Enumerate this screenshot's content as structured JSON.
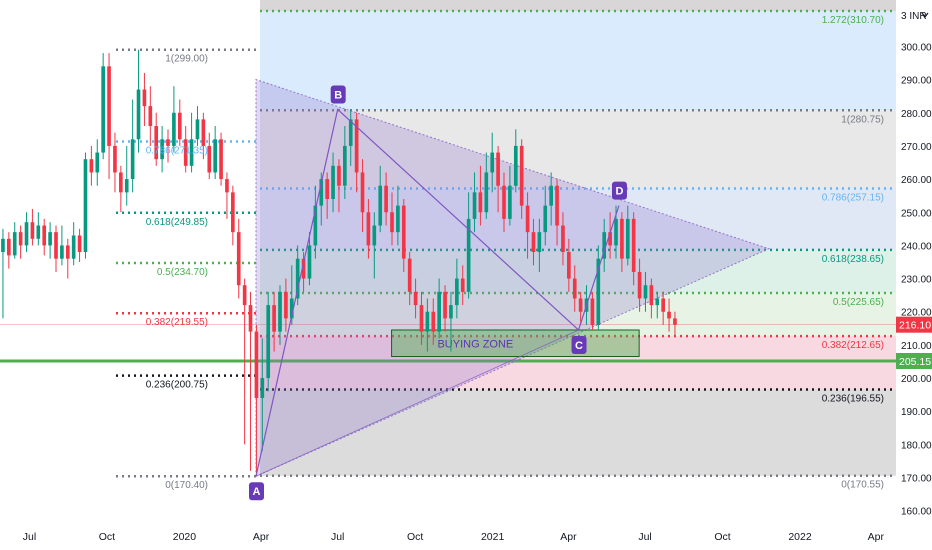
{
  "chart_data": {
    "type": "candlestick",
    "currency_label": "3 INR",
    "currency_icon": "chevron-down-icon",
    "y_ticks": [
      160,
      170,
      180,
      190,
      200,
      210,
      220,
      230,
      240,
      250,
      260,
      270,
      280,
      290,
      300
    ],
    "y_tick_labels": [
      "160.00",
      "170.00",
      "180.00",
      "190.00",
      "200.00",
      "210.00",
      "220.00",
      "230.00",
      "240.00",
      "250.00",
      "260.00",
      "270.00",
      "280.00",
      "290.00",
      "300.00"
    ],
    "ylim": [
      156,
      314
    ],
    "x_range": [
      "2019-05-27",
      "2022-04-25"
    ],
    "x_ticks": [
      {
        "date": "2019-07-01",
        "label": "Jul"
      },
      {
        "date": "2019-10-01",
        "label": "Oct"
      },
      {
        "date": "2020-01-01",
        "label": "2020"
      },
      {
        "date": "2020-04-01",
        "label": "Apr"
      },
      {
        "date": "2020-07-01",
        "label": "Jul"
      },
      {
        "date": "2020-10-01",
        "label": "Oct"
      },
      {
        "date": "2021-01-01",
        "label": "2021"
      },
      {
        "date": "2021-04-01",
        "label": "Apr"
      },
      {
        "date": "2021-07-01",
        "label": "Jul"
      },
      {
        "date": "2021-10-01",
        "label": "Oct"
      },
      {
        "date": "2022-01-01",
        "label": "2022"
      },
      {
        "date": "2022-04-01",
        "label": "Apr"
      }
    ],
    "price_badges": [
      {
        "value": 216.1,
        "label": "216.10",
        "color": "#f23645"
      },
      {
        "value": 205.15,
        "label": "205.15",
        "color": "#4caf50"
      }
    ],
    "green_line_value": 205.15,
    "pink_line_value": 216.1,
    "fib_left": {
      "levels": [
        {
          "ratio_label": "1(299.00)",
          "value": 299.0,
          "color": "#787b86"
        },
        {
          "ratio_label": "0.786(271.35)",
          "value": 271.35,
          "color": "#64b5f6"
        },
        {
          "ratio_label": "0.618(249.85)",
          "value": 249.85,
          "color": "#089981"
        },
        {
          "ratio_label": "0.5(234.70)",
          "value": 234.7,
          "color": "#4caf50"
        },
        {
          "ratio_label": "0.382(219.55)",
          "value": 219.55,
          "color": "#f23645"
        },
        {
          "ratio_label": "0.236(200.75)",
          "value": 200.75,
          "color": "#131722"
        },
        {
          "ratio_label": "0(170.40)",
          "value": 170.4,
          "color": "#787b86"
        }
      ]
    },
    "fib_right": {
      "levels": [
        {
          "ratio_label": "1.272(310.70)",
          "value": 310.7,
          "color": "#4caf50"
        },
        {
          "ratio_label": "1(280.75)",
          "value": 280.75,
          "color": "#787b86"
        },
        {
          "ratio_label": "0.786(257.15)",
          "value": 257.15,
          "color": "#64b5f6"
        },
        {
          "ratio_label": "0.618(238.65)",
          "value": 238.65,
          "color": "#089981"
        },
        {
          "ratio_label": "0.5(225.65)",
          "value": 225.65,
          "color": "#4caf50"
        },
        {
          "ratio_label": "0.382(212.65)",
          "value": 212.65,
          "color": "#f23645"
        },
        {
          "ratio_label": "0.236(196.55)",
          "value": 196.55,
          "color": "#131722"
        },
        {
          "ratio_label": "0(170.55)",
          "value": 170.55,
          "color": "#787b86"
        }
      ]
    },
    "points": [
      {
        "label": "A",
        "date": "2020-03-26",
        "value": 170.4
      },
      {
        "label": "B",
        "date": "2020-07-01",
        "value": 281.0
      },
      {
        "label": "C",
        "date": "2021-04-13",
        "value": 214.5
      },
      {
        "label": "D",
        "date": "2021-05-31",
        "value": 252.0
      }
    ],
    "triangle_apex": {
      "date": "2021-11-25",
      "value": 239.0
    },
    "triangle_top_start": {
      "date": "2020-03-26",
      "value": 290.0
    },
    "buying_zone": {
      "label": "BUYING ZONE",
      "date_start": "2020-09-03",
      "date_end": "2021-06-24",
      "value_top": 214.5,
      "value_bottom": 206.5
    },
    "candles": [
      {
        "o": 238,
        "c": 242,
        "h": 245,
        "l": 218
      },
      {
        "o": 242,
        "c": 237,
        "h": 244,
        "l": 233
      },
      {
        "o": 237,
        "c": 244,
        "h": 247,
        "l": 236
      },
      {
        "o": 244,
        "c": 240,
        "h": 246,
        "l": 236
      },
      {
        "o": 240,
        "c": 247,
        "h": 250,
        "l": 238
      },
      {
        "o": 247,
        "c": 242,
        "h": 251,
        "l": 240
      },
      {
        "o": 242,
        "c": 246,
        "h": 250,
        "l": 240
      },
      {
        "o": 246,
        "c": 240,
        "h": 248,
        "l": 237
      },
      {
        "o": 240,
        "c": 244,
        "h": 247,
        "l": 236
      },
      {
        "o": 244,
        "c": 236,
        "h": 246,
        "l": 232
      },
      {
        "o": 236,
        "c": 240,
        "h": 246,
        "l": 234
      },
      {
        "o": 240,
        "c": 236,
        "h": 242,
        "l": 230
      },
      {
        "o": 236,
        "c": 243,
        "h": 247,
        "l": 234
      },
      {
        "o": 243,
        "c": 238,
        "h": 245,
        "l": 235
      },
      {
        "o": 238,
        "c": 266,
        "h": 268,
        "l": 236
      },
      {
        "o": 266,
        "c": 262,
        "h": 270,
        "l": 258
      },
      {
        "o": 262,
        "c": 268,
        "h": 272,
        "l": 258
      },
      {
        "o": 268,
        "c": 294,
        "h": 298,
        "l": 266
      },
      {
        "o": 294,
        "c": 270,
        "h": 298,
        "l": 260
      },
      {
        "o": 270,
        "c": 262,
        "h": 274,
        "l": 256
      },
      {
        "o": 262,
        "c": 256,
        "h": 264,
        "l": 250
      },
      {
        "o": 256,
        "c": 260,
        "h": 270,
        "l": 252
      },
      {
        "o": 260,
        "c": 272,
        "h": 284,
        "l": 256
      },
      {
        "o": 272,
        "c": 287,
        "h": 299,
        "l": 268
      },
      {
        "o": 287,
        "c": 282,
        "h": 292,
        "l": 276
      },
      {
        "o": 282,
        "c": 276,
        "h": 288,
        "l": 270
      },
      {
        "o": 276,
        "c": 266,
        "h": 280,
        "l": 264
      },
      {
        "o": 266,
        "c": 272,
        "h": 276,
        "l": 262
      },
      {
        "o": 272,
        "c": 270,
        "h": 275,
        "l": 265
      },
      {
        "o": 270,
        "c": 280,
        "h": 288,
        "l": 268
      },
      {
        "o": 280,
        "c": 272,
        "h": 284,
        "l": 270
      },
      {
        "o": 272,
        "c": 264,
        "h": 276,
        "l": 262
      },
      {
        "o": 264,
        "c": 272,
        "h": 280,
        "l": 262
      },
      {
        "o": 272,
        "c": 278,
        "h": 282,
        "l": 270
      },
      {
        "o": 278,
        "c": 270,
        "h": 280,
        "l": 266
      },
      {
        "o": 270,
        "c": 262,
        "h": 274,
        "l": 260
      },
      {
        "o": 262,
        "c": 272,
        "h": 276,
        "l": 260
      },
      {
        "o": 272,
        "c": 260,
        "h": 274,
        "l": 258
      },
      {
        "o": 260,
        "c": 256,
        "h": 262,
        "l": 248
      },
      {
        "o": 256,
        "c": 244,
        "h": 258,
        "l": 240
      },
      {
        "o": 244,
        "c": 228,
        "h": 248,
        "l": 224
      },
      {
        "o": 228,
        "c": 222,
        "h": 230,
        "l": 180
      },
      {
        "o": 222,
        "c": 214,
        "h": 226,
        "l": 172
      },
      {
        "o": 214,
        "c": 194,
        "h": 216,
        "l": 170.4
      },
      {
        "o": 194,
        "c": 200,
        "h": 212,
        "l": 178
      },
      {
        "o": 200,
        "c": 222,
        "h": 226,
        "l": 196
      },
      {
        "o": 222,
        "c": 214,
        "h": 226,
        "l": 208
      },
      {
        "o": 214,
        "c": 226,
        "h": 228,
        "l": 210
      },
      {
        "o": 226,
        "c": 218,
        "h": 230,
        "l": 214
      },
      {
        "o": 218,
        "c": 224,
        "h": 234,
        "l": 216
      },
      {
        "o": 224,
        "c": 236,
        "h": 240,
        "l": 222
      },
      {
        "o": 236,
        "c": 230,
        "h": 238,
        "l": 226
      },
      {
        "o": 230,
        "c": 240,
        "h": 244,
        "l": 228
      },
      {
        "o": 240,
        "c": 252,
        "h": 258,
        "l": 236
      },
      {
        "o": 252,
        "c": 260,
        "h": 262,
        "l": 246
      },
      {
        "o": 260,
        "c": 254,
        "h": 262,
        "l": 248
      },
      {
        "o": 254,
        "c": 264,
        "h": 268,
        "l": 250
      },
      {
        "o": 264,
        "c": 258,
        "h": 266,
        "l": 250
      },
      {
        "o": 258,
        "c": 270,
        "h": 276,
        "l": 254
      },
      {
        "o": 270,
        "c": 278,
        "h": 281,
        "l": 264
      },
      {
        "o": 278,
        "c": 262,
        "h": 280,
        "l": 256
      },
      {
        "o": 262,
        "c": 250,
        "h": 266,
        "l": 244
      },
      {
        "o": 250,
        "c": 240,
        "h": 254,
        "l": 236
      },
      {
        "o": 240,
        "c": 246,
        "h": 250,
        "l": 230
      },
      {
        "o": 246,
        "c": 258,
        "h": 264,
        "l": 244
      },
      {
        "o": 258,
        "c": 250,
        "h": 262,
        "l": 246
      },
      {
        "o": 250,
        "c": 244,
        "h": 256,
        "l": 240
      },
      {
        "o": 244,
        "c": 252,
        "h": 258,
        "l": 240
      },
      {
        "o": 252,
        "c": 236,
        "h": 254,
        "l": 232
      },
      {
        "o": 236,
        "c": 226,
        "h": 238,
        "l": 222
      },
      {
        "o": 226,
        "c": 222,
        "h": 230,
        "l": 218
      },
      {
        "o": 222,
        "c": 214,
        "h": 226,
        "l": 210
      },
      {
        "o": 214,
        "c": 220,
        "h": 224,
        "l": 208
      },
      {
        "o": 220,
        "c": 214,
        "h": 224,
        "l": 210
      },
      {
        "o": 214,
        "c": 226,
        "h": 230,
        "l": 212
      },
      {
        "o": 226,
        "c": 218,
        "h": 228,
        "l": 214
      },
      {
        "o": 218,
        "c": 222,
        "h": 226,
        "l": 208
      },
      {
        "o": 222,
        "c": 230,
        "h": 236,
        "l": 218
      },
      {
        "o": 230,
        "c": 226,
        "h": 234,
        "l": 222
      },
      {
        "o": 226,
        "c": 248,
        "h": 256,
        "l": 224
      },
      {
        "o": 248,
        "c": 256,
        "h": 262,
        "l": 244
      },
      {
        "o": 256,
        "c": 250,
        "h": 264,
        "l": 246
      },
      {
        "o": 250,
        "c": 262,
        "h": 268,
        "l": 248
      },
      {
        "o": 262,
        "c": 268,
        "h": 274,
        "l": 256
      },
      {
        "o": 268,
        "c": 258,
        "h": 270,
        "l": 250
      },
      {
        "o": 258,
        "c": 248,
        "h": 262,
        "l": 244
      },
      {
        "o": 248,
        "c": 258,
        "h": 264,
        "l": 246
      },
      {
        "o": 258,
        "c": 270,
        "h": 275,
        "l": 256
      },
      {
        "o": 270,
        "c": 252,
        "h": 272,
        "l": 248
      },
      {
        "o": 252,
        "c": 244,
        "h": 256,
        "l": 236
      },
      {
        "o": 244,
        "c": 238,
        "h": 248,
        "l": 234
      },
      {
        "o": 238,
        "c": 244,
        "h": 248,
        "l": 232
      },
      {
        "o": 244,
        "c": 252,
        "h": 258,
        "l": 240
      },
      {
        "o": 252,
        "c": 258,
        "h": 262,
        "l": 246
      },
      {
        "o": 258,
        "c": 246,
        "h": 260,
        "l": 240
      },
      {
        "o": 246,
        "c": 238,
        "h": 250,
        "l": 234
      },
      {
        "o": 238,
        "c": 230,
        "h": 242,
        "l": 226
      },
      {
        "o": 230,
        "c": 224,
        "h": 234,
        "l": 220
      },
      {
        "o": 224,
        "c": 220,
        "h": 226,
        "l": 216
      },
      {
        "o": 220,
        "c": 224,
        "h": 228,
        "l": 216
      },
      {
        "o": 224,
        "c": 216,
        "h": 226,
        "l": 214.5
      },
      {
        "o": 216,
        "c": 236,
        "h": 240,
        "l": 214.5
      },
      {
        "o": 236,
        "c": 244,
        "h": 248,
        "l": 232
      },
      {
        "o": 244,
        "c": 240,
        "h": 250,
        "l": 236
      },
      {
        "o": 240,
        "c": 248,
        "h": 252,
        "l": 236
      },
      {
        "o": 248,
        "c": 236,
        "h": 250,
        "l": 232
      },
      {
        "o": 236,
        "c": 248,
        "h": 252,
        "l": 234
      },
      {
        "o": 248,
        "c": 232,
        "h": 250,
        "l": 228
      },
      {
        "o": 232,
        "c": 224,
        "h": 236,
        "l": 220
      },
      {
        "o": 224,
        "c": 228,
        "h": 232,
        "l": 220
      },
      {
        "o": 228,
        "c": 222,
        "h": 230,
        "l": 218
      },
      {
        "o": 222,
        "c": 224,
        "h": 226,
        "l": 218
      },
      {
        "o": 224,
        "c": 220,
        "h": 226,
        "l": 216
      },
      {
        "o": 220,
        "c": 218,
        "h": 224,
        "l": 214
      },
      {
        "o": 218,
        "c": 216.1,
        "h": 220,
        "l": 213
      }
    ]
  }
}
